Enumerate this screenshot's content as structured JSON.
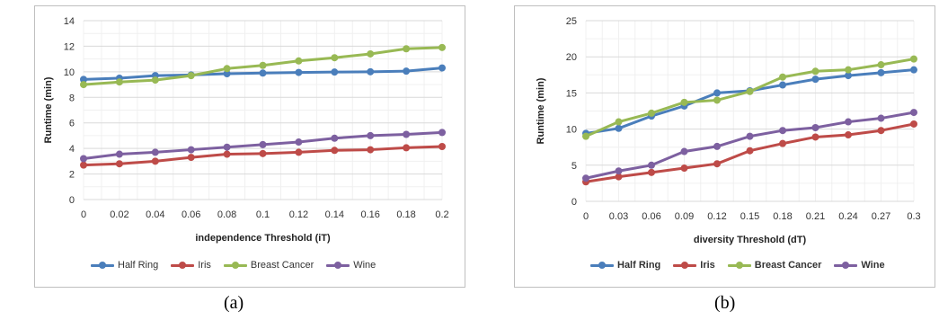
{
  "captions": [
    "(a)",
    "(b)"
  ],
  "chart_data": [
    {
      "type": "line",
      "xlabel": "independence Threshold (iT)",
      "ylabel": "Runtime (min)",
      "x": [
        "0",
        "0.02",
        "0.04",
        "0.06",
        "0.08",
        "0.1",
        "0.12",
        "0.14",
        "0.16",
        "0.18",
        "0.2"
      ],
      "yticks": [
        "0",
        "2",
        "4",
        "6",
        "8",
        "10",
        "12",
        "14"
      ],
      "ylim": [
        0,
        14
      ],
      "grid": true,
      "legend_position": "bottom",
      "series": [
        {
          "name": "Half Ring",
          "color": "#4a7ebb",
          "values": [
            9.4,
            9.5,
            9.7,
            9.75,
            9.85,
            9.9,
            9.95,
            9.98,
            10.0,
            10.05,
            10.3
          ]
        },
        {
          "name": "Iris",
          "color": "#be4b48",
          "values": [
            2.7,
            2.8,
            3.0,
            3.3,
            3.55,
            3.6,
            3.7,
            3.85,
            3.9,
            4.05,
            4.15
          ]
        },
        {
          "name": "Breast Cancer",
          "color": "#98b954",
          "values": [
            9.0,
            9.2,
            9.35,
            9.7,
            10.25,
            10.5,
            10.85,
            11.1,
            11.4,
            11.8,
            11.9
          ]
        },
        {
          "name": "Wine",
          "color": "#7d60a0",
          "values": [
            3.2,
            3.55,
            3.7,
            3.9,
            4.1,
            4.3,
            4.5,
            4.8,
            5.0,
            5.1,
            5.25
          ]
        }
      ]
    },
    {
      "type": "line",
      "xlabel": "diversity Threshold (dT)",
      "ylabel": "Runtime (min)",
      "x": [
        "0",
        "0.03",
        "0.06",
        "0.09",
        "0.12",
        "0.15",
        "0.18",
        "0.21",
        "0.24",
        "0.27",
        "0.3"
      ],
      "yticks": [
        "0",
        "5",
        "10",
        "15",
        "20",
        "25"
      ],
      "ylim": [
        0,
        25
      ],
      "grid": true,
      "legend_position": "bottom",
      "series": [
        {
          "name": "Half Ring",
          "color": "#4a7ebb",
          "values": [
            9.4,
            10.1,
            11.8,
            13.2,
            15.0,
            15.3,
            16.1,
            16.9,
            17.4,
            17.8,
            18.2
          ]
        },
        {
          "name": "Iris",
          "color": "#be4b48",
          "values": [
            2.7,
            3.4,
            4.0,
            4.6,
            5.2,
            7.0,
            8.0,
            8.9,
            9.2,
            9.8,
            10.7
          ]
        },
        {
          "name": "Breast Cancer",
          "color": "#98b954",
          "values": [
            9.0,
            11.0,
            12.2,
            13.7,
            14.0,
            15.2,
            17.2,
            18.0,
            18.2,
            18.9,
            19.7
          ]
        },
        {
          "name": "Wine",
          "color": "#7d60a0",
          "values": [
            3.2,
            4.2,
            5.0,
            6.9,
            7.6,
            9.0,
            9.8,
            10.2,
            11.0,
            11.5,
            12.3
          ]
        }
      ]
    }
  ]
}
